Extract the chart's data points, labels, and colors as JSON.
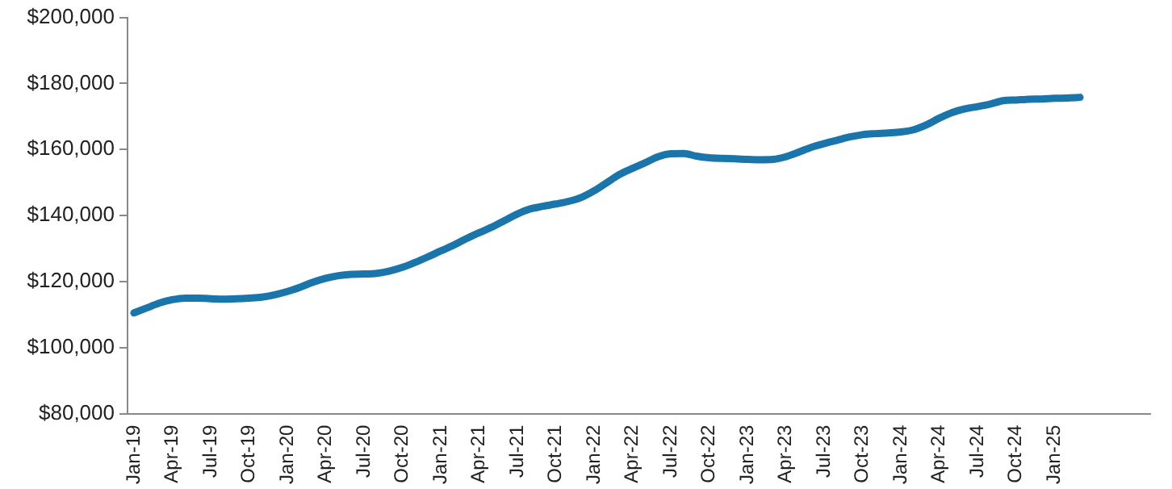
{
  "chart_data": {
    "type": "line",
    "categories": [
      "Jan-19",
      null,
      null,
      "Apr-19",
      null,
      null,
      "Jul-19",
      null,
      null,
      "Oct-19",
      null,
      null,
      "Jan-20",
      null,
      null,
      "Apr-20",
      null,
      null,
      "Jul-20",
      null,
      null,
      "Oct-20",
      null,
      null,
      "Jan-21",
      null,
      null,
      "Apr-21",
      null,
      null,
      "Jul-21",
      null,
      null,
      "Oct-21",
      null,
      null,
      "Jan-22",
      null,
      null,
      "Apr-22",
      null,
      null,
      "Jul-22",
      null,
      null,
      "Oct-22",
      null,
      null,
      "Jan-23",
      null,
      null,
      "Apr-23",
      null,
      null,
      "Jul-23",
      null,
      null,
      "Oct-23",
      null,
      null,
      "Jan-24",
      null,
      null,
      "Apr-24",
      null,
      null,
      "Jul-24",
      null,
      null,
      "Oct-24",
      null,
      null,
      "Jan-25",
      null,
      null,
      null,
      null,
      null,
      null,
      null
    ],
    "series": [
      {
        "color": "#1a75aa",
        "values": [
          110500,
          112000,
          113500,
          114500,
          115000,
          115000,
          114800,
          114700,
          114800,
          115000,
          115300,
          116000,
          117000,
          118300,
          119800,
          121000,
          121800,
          122200,
          122300,
          122500,
          123200,
          124300,
          125800,
          127500,
          129300,
          131000,
          133000,
          134800,
          136500,
          138500,
          140500,
          142000,
          142800,
          143500,
          144300,
          145500,
          147500,
          150000,
          152500,
          154300,
          156000,
          157800,
          158700,
          158800,
          158000,
          157500,
          157300,
          157200,
          157000,
          156900,
          157000,
          157800,
          159200,
          160700,
          161800,
          162800,
          163800,
          164500,
          164800,
          165000,
          165300,
          166000,
          167500,
          169500,
          171200,
          172300,
          173000,
          173800,
          174800,
          175000,
          175200,
          175300,
          175500,
          175600,
          175800,
          null,
          null,
          null,
          null,
          null
        ]
      }
    ],
    "ylim": [
      80000,
      200000
    ],
    "yticks": [
      {
        "value": 80000,
        "label": "$80,000"
      },
      {
        "value": 100000,
        "label": "$100,000"
      },
      {
        "value": 120000,
        "label": "$120,000"
      },
      {
        "value": 140000,
        "label": "$140,000"
      },
      {
        "value": 160000,
        "label": "$160,000"
      },
      {
        "value": 180000,
        "label": "$180,000"
      },
      {
        "value": 200000,
        "label": "$200,000"
      }
    ],
    "grid": false,
    "legend": false,
    "marker": "none",
    "line_style": "solid"
  }
}
